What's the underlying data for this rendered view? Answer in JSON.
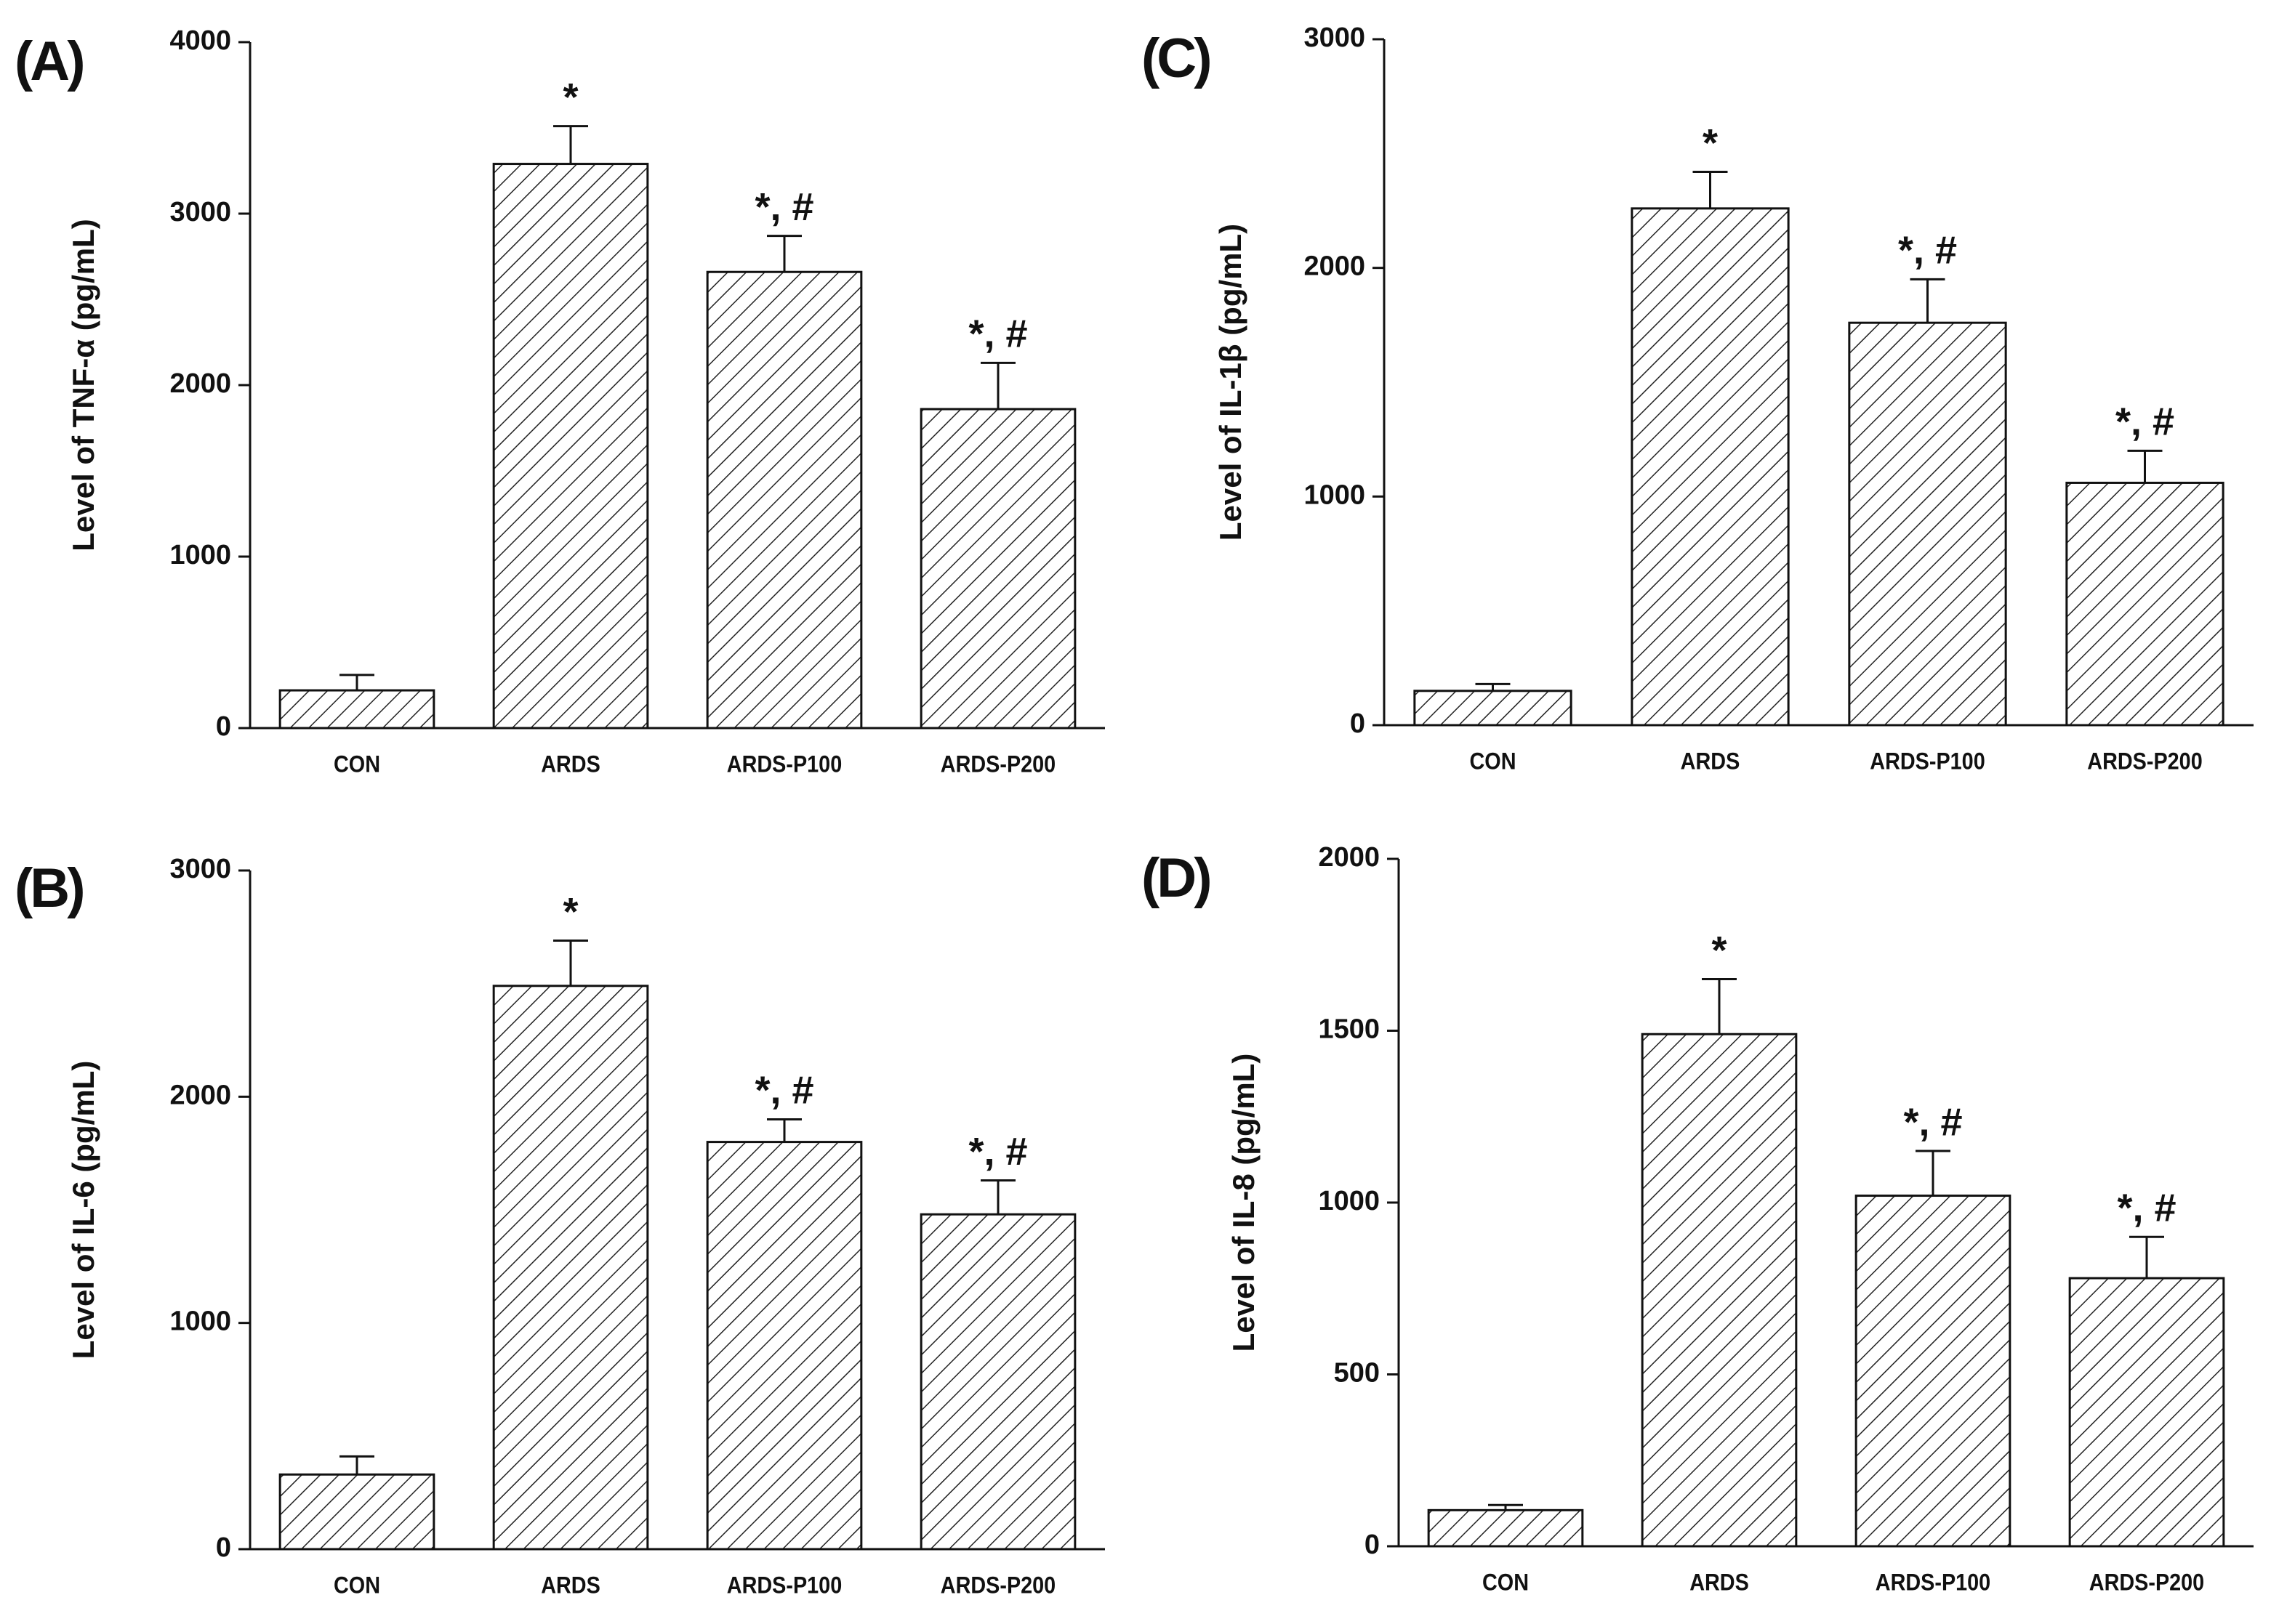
{
  "chart_data": [
    {
      "type": "bar",
      "panel": "(A)",
      "ylabel": "Level of TNF-α (pg/mL)",
      "categories": [
        "CON",
        "ARDS",
        "ARDS-P100",
        "ARDS-P200"
      ],
      "values": [
        220,
        3290,
        2660,
        1860
      ],
      "errors": [
        90,
        220,
        210,
        270
      ],
      "annotations": [
        null,
        "*",
        "*, #",
        "*, #"
      ],
      "color": "#ffffff",
      "hatch": true,
      "ylim": [
        0,
        4000
      ],
      "yticks": [
        0,
        1000,
        2000,
        3000,
        4000
      ]
    },
    {
      "type": "bar",
      "panel": "(B)",
      "ylabel": "Level of IL-6 (pg/mL)",
      "categories": [
        "CON",
        "ARDS",
        "ARDS-P100",
        "ARDS-P200"
      ],
      "values": [
        330,
        2490,
        1800,
        1480
      ],
      "errors": [
        80,
        200,
        100,
        150
      ],
      "annotations": [
        null,
        "*",
        "*, #",
        "*, #"
      ],
      "color": "#ffffff",
      "hatch": true,
      "ylim": [
        0,
        3000
      ],
      "yticks": [
        0,
        1000,
        2000,
        3000
      ]
    },
    {
      "type": "bar",
      "panel": "(C)",
      "ylabel": "Level of IL-1β (pg/mL)",
      "categories": [
        "CON",
        "ARDS",
        "ARDS-P100",
        "ARDS-P200"
      ],
      "values": [
        150,
        2260,
        1760,
        1060
      ],
      "errors": [
        30,
        160,
        190,
        140
      ],
      "annotations": [
        null,
        "*",
        "*, #",
        "*, #"
      ],
      "color": "#ffffff",
      "hatch": true,
      "ylim": [
        0,
        3000
      ],
      "yticks": [
        0,
        1000,
        2000,
        3000
      ]
    },
    {
      "type": "bar",
      "panel": "(D)",
      "ylabel": "Level of IL-8 (pg/mL)",
      "categories": [
        "CON",
        "ARDS",
        "ARDS-P100",
        "ARDS-P200"
      ],
      "values": [
        105,
        1490,
        1020,
        780
      ],
      "errors": [
        15,
        160,
        130,
        120
      ],
      "annotations": [
        null,
        "*",
        "*, #",
        "*, #"
      ],
      "color": "#ffffff",
      "hatch": true,
      "ylim": [
        0,
        2000
      ],
      "yticks": [
        0,
        500,
        1000,
        1500,
        2000
      ]
    }
  ]
}
